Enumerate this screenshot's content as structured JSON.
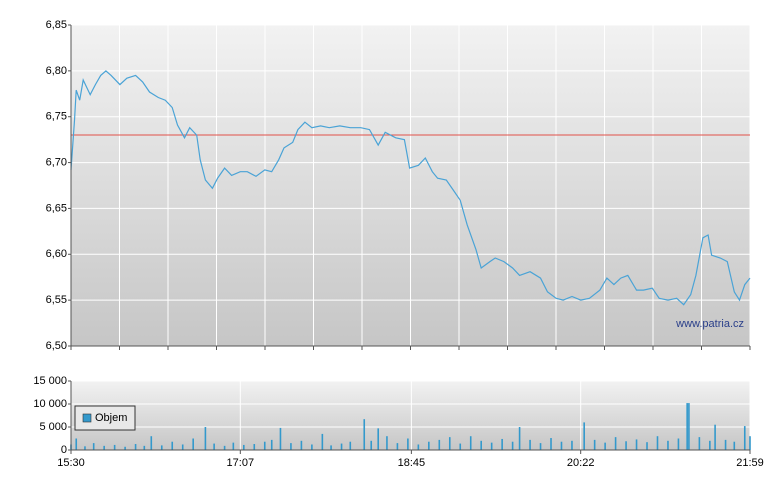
{
  "chart_data": [
    {
      "type": "line",
      "x": [
        "15:30",
        "15:32",
        "15:33",
        "15:35",
        "15:37",
        "15:41",
        "15:44",
        "15:47",
        "15:50",
        "15:53",
        "15:58",
        "16:02",
        "16:07",
        "16:11",
        "16:15",
        "16:20",
        "16:24",
        "16:28",
        "16:31",
        "16:35",
        "16:38",
        "16:42",
        "16:44",
        "16:47",
        "16:51",
        "16:54",
        "16:58",
        "17:02",
        "17:07",
        "17:11",
        "17:16",
        "17:21",
        "17:25",
        "17:29",
        "17:32",
        "17:37",
        "17:40",
        "17:44",
        "17:48",
        "17:53",
        "17:58",
        "18:04",
        "18:10",
        "18:16",
        "18:21",
        "18:26",
        "18:30",
        "18:36",
        "18:41",
        "18:44",
        "18:49",
        "18:53",
        "18:57",
        "19:00",
        "19:05",
        "19:09",
        "19:13",
        "19:17",
        "19:22",
        "19:25",
        "19:30",
        "19:33",
        "19:38",
        "19:43",
        "19:47",
        "19:53",
        "19:59",
        "20:03",
        "20:08",
        "20:12",
        "20:17",
        "20:22",
        "20:27",
        "20:33",
        "20:37",
        "20:41",
        "20:45",
        "20:49",
        "20:54",
        "20:58",
        "21:03",
        "21:07",
        "21:12",
        "21:17",
        "21:21",
        "21:25",
        "21:28",
        "21:32",
        "21:35",
        "21:37",
        "21:42",
        "21:46",
        "21:50",
        "21:53",
        "21:56",
        "21:59"
      ],
      "series": [
        {
          "color": "#4aa3d6",
          "values": [
            6.692,
            6.746,
            6.779,
            6.768,
            6.79,
            6.774,
            6.785,
            6.795,
            6.8,
            6.795,
            6.785,
            6.792,
            6.795,
            6.788,
            6.777,
            6.771,
            6.768,
            6.76,
            6.741,
            6.727,
            6.738,
            6.73,
            6.703,
            6.681,
            6.672,
            6.683,
            6.694,
            6.686,
            6.69,
            6.69,
            6.685,
            6.692,
            6.69,
            6.703,
            6.716,
            6.722,
            6.736,
            6.744,
            6.738,
            6.74,
            6.738,
            6.74,
            6.738,
            6.738,
            6.736,
            6.719,
            6.733,
            6.727,
            6.725,
            6.694,
            6.697,
            6.705,
            6.69,
            6.683,
            6.681,
            6.67,
            6.659,
            6.632,
            6.605,
            6.585,
            6.592,
            6.596,
            6.592,
            6.585,
            6.577,
            6.581,
            6.574,
            6.559,
            6.552,
            6.55,
            6.554,
            6.55,
            6.552,
            6.561,
            6.574,
            6.567,
            6.574,
            6.577,
            6.561,
            6.561,
            6.563,
            6.552,
            6.55,
            6.552,
            6.545,
            6.556,
            6.577,
            6.618,
            6.621,
            6.599,
            6.596,
            6.592,
            6.559,
            6.55,
            6.567,
            6.574
          ]
        }
      ],
      "reference_line": {
        "value": 6.73,
        "color": "#e0504a"
      },
      "xlim": [
        "15:30",
        "21:59"
      ],
      "ylim": [
        6.5,
        6.85
      ],
      "yticks": [
        {
          "value": 6.5,
          "label": "6,50"
        },
        {
          "value": 6.55,
          "label": "6,55"
        },
        {
          "value": 6.6,
          "label": "6,60"
        },
        {
          "value": 6.65,
          "label": "6,65"
        },
        {
          "value": 6.7,
          "label": "6,70"
        },
        {
          "value": 6.75,
          "label": "6,75"
        },
        {
          "value": 6.8,
          "label": "6,80"
        },
        {
          "value": 6.85,
          "label": "6,85"
        }
      ],
      "grid": true,
      "watermark": "www.patria.cz"
    },
    {
      "type": "bar",
      "x": [
        "15:30",
        "15:33",
        "15:38",
        "15:43",
        "15:49",
        "15:55",
        "16:01",
        "16:07",
        "16:12",
        "16:16",
        "16:22",
        "16:28",
        "16:34",
        "16:40",
        "16:47",
        "16:52",
        "16:58",
        "17:03",
        "17:09",
        "17:15",
        "17:21",
        "17:25",
        "17:30",
        "17:36",
        "17:42",
        "17:48",
        "17:54",
        "17:59",
        "18:05",
        "18:10",
        "18:18",
        "18:22",
        "18:26",
        "18:31",
        "18:37",
        "18:43",
        "18:49",
        "18:55",
        "19:01",
        "19:07",
        "19:13",
        "19:19",
        "19:25",
        "19:31",
        "19:37",
        "19:43",
        "19:47",
        "19:53",
        "19:59",
        "20:05",
        "20:11",
        "20:17",
        "20:24",
        "20:30",
        "20:36",
        "20:42",
        "20:48",
        "20:54",
        "21:00",
        "21:06",
        "21:12",
        "21:18",
        "21:23",
        "21:24",
        "21:30",
        "21:36",
        "21:39",
        "21:45",
        "21:50",
        "21:56",
        "21:59"
      ],
      "series": [
        {
          "name": "Objem",
          "color": "#3399cc",
          "values": [
            1200,
            2500,
            800,
            1500,
            900,
            1100,
            700,
            1300,
            900,
            3000,
            1000,
            1800,
            1200,
            2500,
            5000,
            1400,
            900,
            1600,
            1100,
            1300,
            1800,
            2200,
            4800,
            1500,
            2000,
            1200,
            3500,
            1000,
            1400,
            1800,
            6700,
            2000,
            4700,
            3000,
            1500,
            2500,
            1200,
            1800,
            2200,
            2800,
            1400,
            3000,
            2000,
            1600,
            2400,
            1800,
            5000,
            2200,
            1500,
            2600,
            1800,
            2000,
            6000,
            2200,
            1600,
            2800,
            1900,
            2300,
            1700,
            3000,
            2000,
            2500,
            10200,
            10200,
            2800,
            2000,
            5500,
            2200,
            1800,
            5200,
            3000
          ]
        }
      ],
      "xlim": [
        "15:30",
        "21:59"
      ],
      "xticks": [
        "15:30",
        "17:07",
        "18:45",
        "20:22",
        "21:59"
      ],
      "ylim": [
        0,
        15000
      ],
      "yticks": [
        {
          "value": 0,
          "label": "0"
        },
        {
          "value": 5000,
          "label": "5 000"
        },
        {
          "value": 10000,
          "label": "10 000"
        },
        {
          "value": 15000,
          "label": "15 000"
        }
      ],
      "grid": true,
      "legend": "lower left"
    }
  ]
}
